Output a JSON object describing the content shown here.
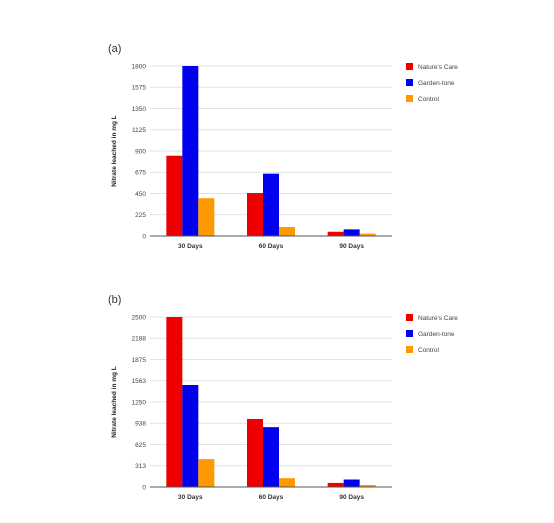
{
  "colors": {
    "natures_care": "#ee0000",
    "garden_tone": "#0000ee",
    "control": "#ff9900"
  },
  "chart_data": [
    {
      "type": "bar",
      "panel": "(a)",
      "ylabel": "Nitrate leached in mg L",
      "categories": [
        "30 Days",
        "60 Days",
        "90 Days"
      ],
      "yticks": [
        "0",
        "225",
        "450",
        "675",
        "900",
        "1125",
        "1350",
        "1575",
        "1800"
      ],
      "ylim": [
        0,
        1800
      ],
      "series": [
        {
          "name": "Nature's Care",
          "color": "#ee0000",
          "values": [
            850,
            455,
            45
          ]
        },
        {
          "name": "Garden-tone",
          "color": "#0000ee",
          "values": [
            1800,
            660,
            70
          ]
        },
        {
          "name": "Control",
          "color": "#ff9900",
          "values": [
            400,
            95,
            25
          ]
        }
      ],
      "legend_position": "top-right",
      "grid": true
    },
    {
      "type": "bar",
      "panel": "(b)",
      "ylabel": "Nitrate leached in mg L",
      "categories": [
        "30 Days",
        "60 Days",
        "90 Days"
      ],
      "yticks": [
        "0",
        "313",
        "625",
        "938",
        "1250",
        "1563",
        "1875",
        "2188",
        "2500"
      ],
      "ylim": [
        0,
        2500
      ],
      "series": [
        {
          "name": "Nature's Care",
          "color": "#ee0000",
          "values": [
            2500,
            1000,
            60
          ]
        },
        {
          "name": "Garden-tone",
          "color": "#0000ee",
          "values": [
            1500,
            880,
            110
          ]
        },
        {
          "name": "Control",
          "color": "#ff9900",
          "values": [
            410,
            130,
            30
          ]
        }
      ],
      "legend_position": "top-right",
      "grid": true
    }
  ]
}
